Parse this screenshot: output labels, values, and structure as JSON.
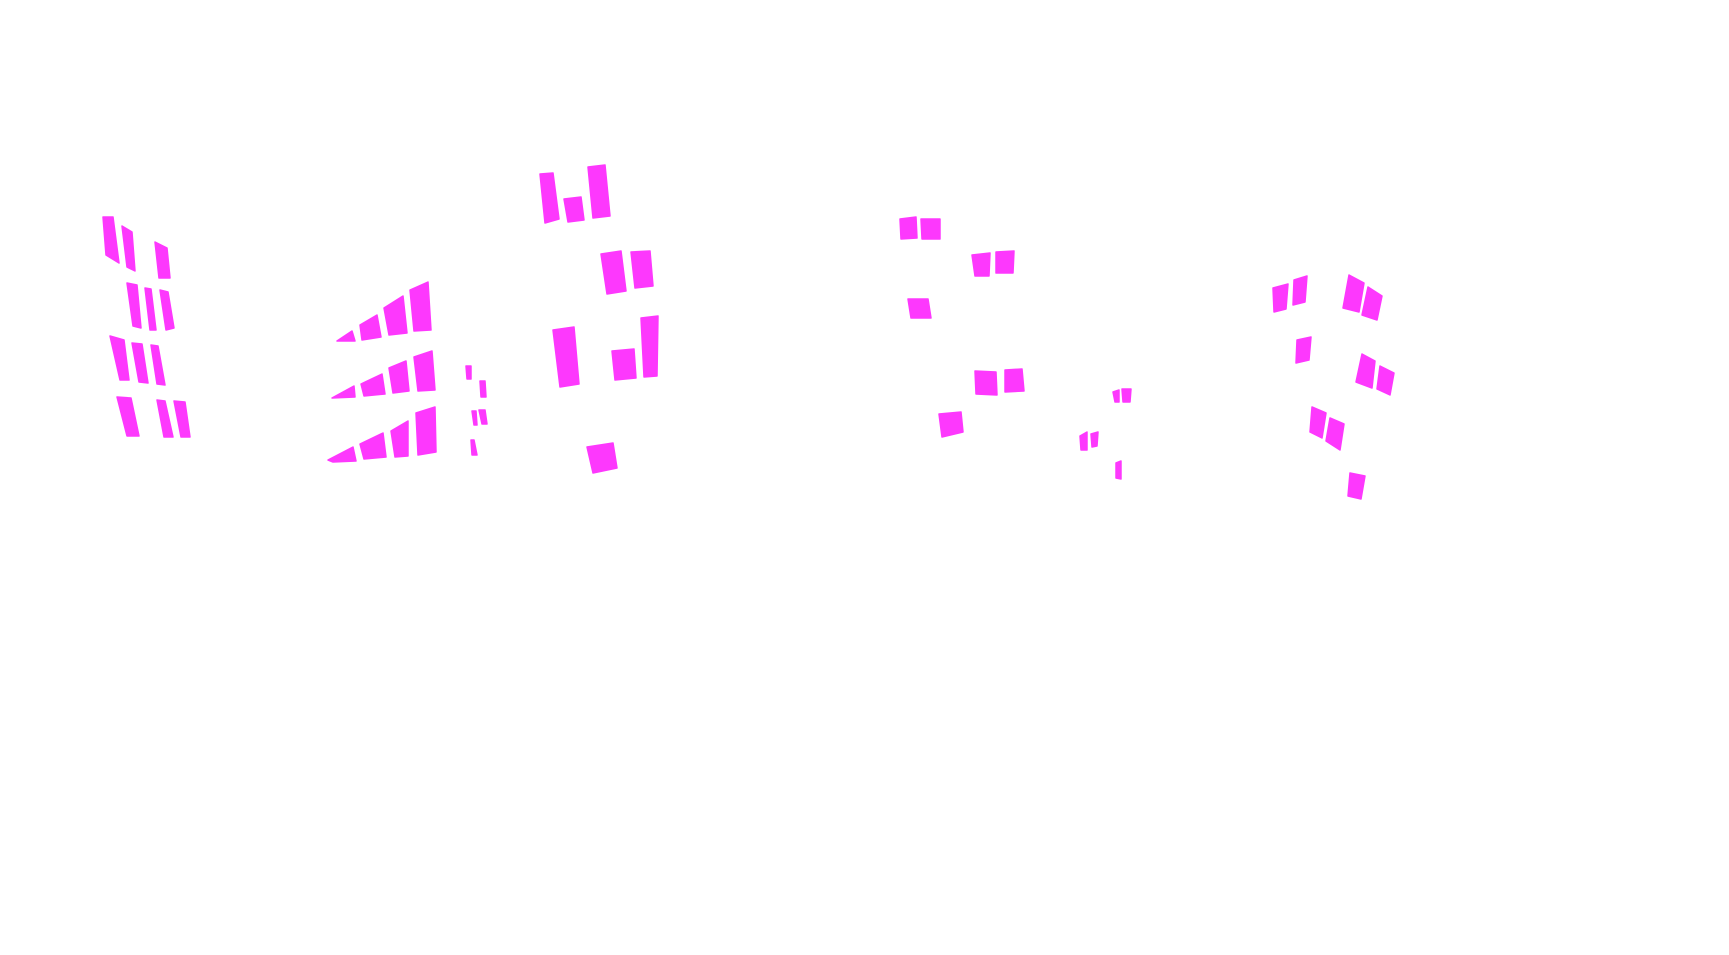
{
  "mask": {
    "fill_color": "#FD38FD",
    "background_color": "#FFFFFF",
    "segmentation_class": "window"
  }
}
